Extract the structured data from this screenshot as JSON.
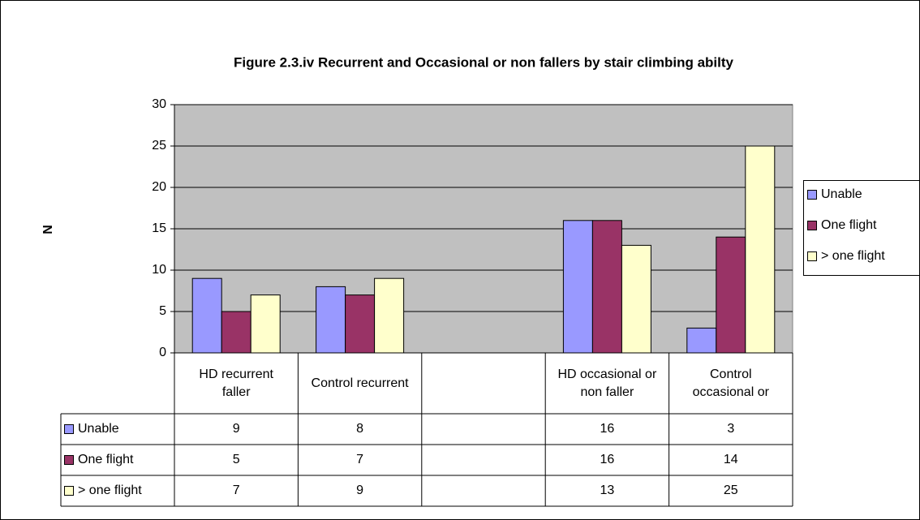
{
  "chart_data": {
    "type": "bar",
    "title": "Figure 2.3.iv Recurrent and Occasional or non fallers by stair climbing abilty",
    "y_label": "N",
    "categories": [
      "HD recurrent faller",
      "Control recurrent",
      null,
      "HD occasional or non faller",
      "Control occasional or"
    ],
    "series": [
      {
        "name": "Unable",
        "color": "#9999ff",
        "values": [
          9,
          8,
          null,
          16,
          3
        ]
      },
      {
        "name": "One flight",
        "color": "#993366",
        "values": [
          5,
          7,
          null,
          16,
          14
        ]
      },
      {
        "name": "> one flight",
        "color": "#ffffcc",
        "values": [
          7,
          9,
          null,
          13,
          25
        ]
      }
    ],
    "ylim": [
      0,
      30
    ],
    "yticks": [
      0,
      5,
      10,
      15,
      20,
      25,
      30
    ],
    "grid": true,
    "plot_background": "#c0c0c0",
    "legend": "right",
    "data_table": true
  }
}
